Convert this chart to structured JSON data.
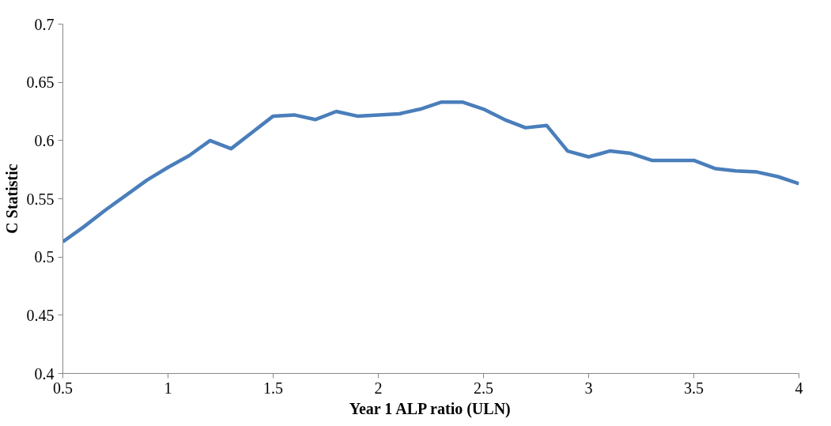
{
  "chart_data": {
    "type": "line",
    "xlabel": "Year 1 ALP ratio (ULN)",
    "ylabel": "C Statistic",
    "x": [
      0.5,
      0.6,
      0.7,
      0.8,
      0.9,
      1.0,
      1.1,
      1.2,
      1.3,
      1.4,
      1.5,
      1.6,
      1.7,
      1.8,
      1.9,
      2.0,
      2.1,
      2.2,
      2.3,
      2.4,
      2.5,
      2.6,
      2.7,
      2.8,
      2.9,
      3.0,
      3.1,
      3.2,
      3.3,
      3.4,
      3.5,
      3.6,
      3.7,
      3.8,
      3.9,
      4.0
    ],
    "series": [
      {
        "color": "#4a7ebb",
        "values": [
          0.513,
          0.526,
          0.54,
          0.553,
          0.566,
          0.577,
          0.587,
          0.6,
          0.593,
          0.607,
          0.621,
          0.622,
          0.618,
          0.625,
          0.621,
          0.622,
          0.623,
          0.627,
          0.633,
          0.633,
          0.627,
          0.618,
          0.611,
          0.613,
          0.591,
          0.586,
          0.591,
          0.589,
          0.583,
          0.583,
          0.583,
          0.576,
          0.574,
          0.573,
          0.569,
          0.563
        ]
      }
    ],
    "xlim": [
      0.5,
      4
    ],
    "ylim": [
      0.4,
      0.7
    ],
    "xticks": [
      0.5,
      1,
      1.5,
      2,
      2.5,
      3,
      3.5,
      4
    ],
    "yticks": [
      0.4,
      0.45,
      0.5,
      0.55,
      0.6,
      0.65,
      0.7
    ],
    "grid": false,
    "marker": "none",
    "line_style": "solid"
  }
}
